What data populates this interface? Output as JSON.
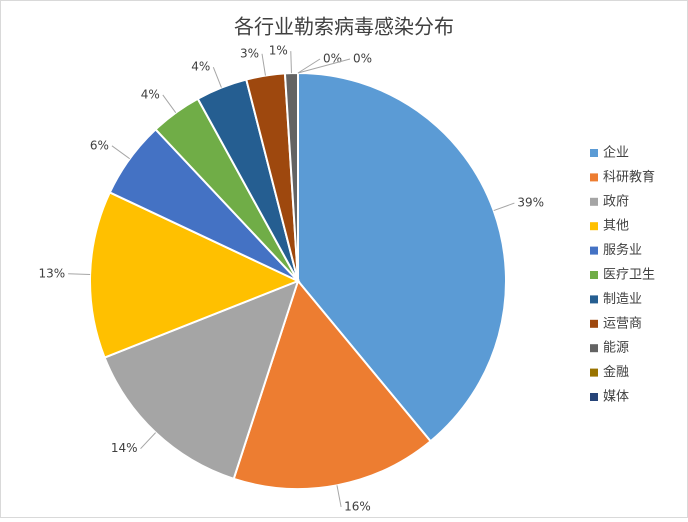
{
  "chart_data": {
    "type": "pie",
    "title": "各行业勒索病毒感染分布",
    "categories": [
      "企业",
      "科研教育",
      "政府",
      "其他",
      "服务业",
      "医疗卫生",
      "制造业",
      "运营商",
      "能源",
      "金融",
      "媒体"
    ],
    "values": [
      39,
      16,
      14,
      13,
      6,
      4,
      4,
      3,
      1,
      0,
      0
    ],
    "value_labels": [
      "39%",
      "16%",
      "14%",
      "13%",
      "6%",
      "4%",
      "4%",
      "3%",
      "1%",
      "0%",
      "0%"
    ],
    "colors": [
      "#5b9bd5",
      "#ed7d31",
      "#a5a5a5",
      "#ffc000",
      "#4472c4",
      "#70ad47",
      "#255e91",
      "#9e480e",
      "#636363",
      "#997300",
      "#264478"
    ],
    "legend": "right"
  }
}
